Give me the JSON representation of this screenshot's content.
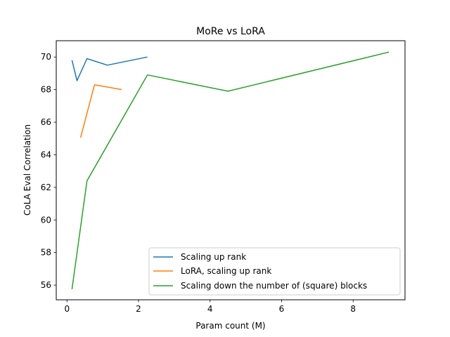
{
  "chart_data": {
    "type": "line",
    "title": "MoRe vs LoRA",
    "xlabel": "Param count (M)",
    "ylabel": "CoLA Eval Correlation",
    "xlim": [
      -0.3,
      9.45
    ],
    "ylim": [
      55.1,
      71.0
    ],
    "xticks": [
      0,
      2,
      4,
      6,
      8
    ],
    "yticks": [
      56,
      58,
      60,
      62,
      64,
      66,
      68,
      70
    ],
    "grid": false,
    "legend_position": "lower-right",
    "series": [
      {
        "name": "Scaling up rank",
        "color": "#1f77b4",
        "x": [
          0.14,
          0.28,
          0.56,
          1.13,
          2.25
        ],
        "y": [
          69.8,
          68.55,
          69.9,
          69.5,
          70.0
        ]
      },
      {
        "name": "LoRA, scaling up rank",
        "color": "#ff7f0e",
        "x": [
          0.38,
          0.77,
          1.53
        ],
        "y": [
          65.05,
          68.3,
          68.0
        ]
      },
      {
        "name": "Scaling down the number of (square) blocks",
        "color": "#2ca02c",
        "x": [
          0.14,
          0.56,
          2.25,
          4.5,
          9.0
        ],
        "y": [
          55.75,
          62.4,
          68.9,
          67.9,
          70.3
        ]
      }
    ]
  }
}
